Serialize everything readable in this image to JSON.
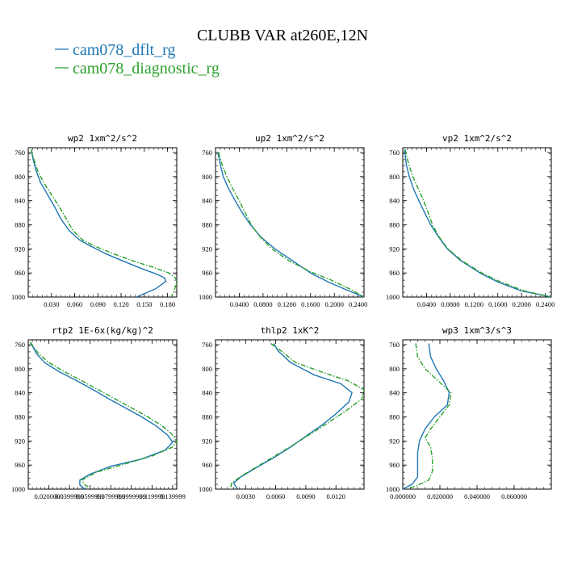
{
  "figure": {
    "title": "CLUBB VAR at260E,12N",
    "legend": [
      {
        "name": "cam078_dflt_rg",
        "color": "#1f77b4",
        "dash": "solid"
      },
      {
        "name": "cam078_diagnostic_rg",
        "color": "#2ca02c",
        "dash": "dashdot"
      }
    ]
  },
  "chart_data": [
    {
      "type": "line",
      "title": "wp2  1xm^2/s^2",
      "xlim": [
        0.0,
        0.192
      ],
      "ylim": [
        1000,
        752
      ],
      "yticks": [
        760,
        800,
        840,
        880,
        920,
        960,
        1000
      ],
      "xticks": [
        0.03,
        0.06,
        0.09,
        0.12,
        0.15,
        0.18
      ],
      "xticklabels": [
        "0.030",
        "0.060",
        "0.090",
        "0.120",
        "0.150",
        "0.180"
      ],
      "series": [
        {
          "name": "cam078_dflt_rg",
          "points": [
            [
              0.004,
              755
            ],
            [
              0.006,
              770
            ],
            [
              0.01,
              790
            ],
            [
              0.016,
              810
            ],
            [
              0.025,
              830
            ],
            [
              0.034,
              850
            ],
            [
              0.042,
              870
            ],
            [
              0.053,
              890
            ],
            [
              0.066,
              905
            ],
            [
              0.08,
              915
            ],
            [
              0.1,
              928
            ],
            [
              0.122,
              940
            ],
            [
              0.145,
              952
            ],
            [
              0.166,
              962
            ],
            [
              0.176,
              968
            ],
            [
              0.178,
              974
            ],
            [
              0.165,
              986
            ],
            [
              0.14,
              1000
            ]
          ]
        },
        {
          "name": "cam078_diagnostic_rg",
          "points": [
            [
              0.004,
              755
            ],
            [
              0.007,
              770
            ],
            [
              0.012,
              790
            ],
            [
              0.02,
              810
            ],
            [
              0.03,
              830
            ],
            [
              0.04,
              850
            ],
            [
              0.049,
              870
            ],
            [
              0.058,
              890
            ],
            [
              0.07,
              905
            ],
            [
              0.085,
              915
            ],
            [
              0.11,
              928
            ],
            [
              0.135,
              940
            ],
            [
              0.16,
              950
            ],
            [
              0.182,
              960
            ],
            [
              0.19,
              968
            ],
            [
              0.192,
              973
            ],
            [
              0.19,
              984
            ],
            [
              0.185,
              1000
            ]
          ]
        }
      ]
    },
    {
      "type": "line",
      "title": "up2  1xm^2/s^2",
      "xlim": [
        0.0,
        0.25
      ],
      "ylim": [
        1000,
        752
      ],
      "yticks": [
        760,
        800,
        840,
        880,
        920,
        960,
        1000
      ],
      "xticks": [
        0.04,
        0.08,
        0.12,
        0.16,
        0.2,
        0.24
      ],
      "xticklabels": [
        "0.0400",
        "0.0800",
        "0.1200",
        "0.1600",
        "0.2000",
        "0.2400"
      ],
      "series": [
        {
          "name": "cam078_dflt_rg",
          "points": [
            [
              0.004,
              760
            ],
            [
              0.008,
              780
            ],
            [
              0.013,
              800
            ],
            [
              0.022,
              820
            ],
            [
              0.033,
              840
            ],
            [
              0.045,
              860
            ],
            [
              0.059,
              880
            ],
            [
              0.076,
              900
            ],
            [
              0.1,
              920
            ],
            [
              0.13,
              940
            ],
            [
              0.16,
              960
            ],
            [
              0.19,
              975
            ],
            [
              0.22,
              988
            ],
            [
              0.25,
              1000
            ]
          ]
        },
        {
          "name": "cam078_diagnostic_rg",
          "points": [
            [
              0.005,
              760
            ],
            [
              0.011,
              780
            ],
            [
              0.019,
              800
            ],
            [
              0.029,
              820
            ],
            [
              0.04,
              840
            ],
            [
              0.05,
              860
            ],
            [
              0.06,
              880
            ],
            [
              0.075,
              900
            ],
            [
              0.095,
              920
            ],
            [
              0.124,
              940
            ],
            [
              0.16,
              958
            ],
            [
              0.195,
              972
            ],
            [
              0.225,
              986
            ],
            [
              0.25,
              1000
            ]
          ]
        }
      ]
    },
    {
      "type": "line",
      "title": "vp2  1xm^2/s^2",
      "xlim": [
        0.0,
        0.25
      ],
      "ylim": [
        1000,
        752
      ],
      "yticks": [
        760,
        800,
        840,
        880,
        920,
        960,
        1000
      ],
      "xticks": [
        0.04,
        0.08,
        0.12,
        0.16,
        0.2,
        0.24
      ],
      "xticklabels": [
        "0.0400",
        "0.0800",
        "0.1200",
        "0.1600",
        "0.2000",
        "0.2400"
      ],
      "series": [
        {
          "name": "cam078_dflt_rg",
          "points": [
            [
              0.003,
              755
            ],
            [
              0.006,
              780
            ],
            [
              0.011,
              800
            ],
            [
              0.018,
              820
            ],
            [
              0.027,
              840
            ],
            [
              0.037,
              860
            ],
            [
              0.047,
              880
            ],
            [
              0.06,
              900
            ],
            [
              0.075,
              920
            ],
            [
              0.098,
              940
            ],
            [
              0.13,
              960
            ],
            [
              0.16,
              975
            ],
            [
              0.2,
              990
            ],
            [
              0.25,
              1000
            ]
          ]
        },
        {
          "name": "cam078_diagnostic_rg",
          "points": [
            [
              0.004,
              755
            ],
            [
              0.01,
              780
            ],
            [
              0.017,
              800
            ],
            [
              0.026,
              820
            ],
            [
              0.035,
              840
            ],
            [
              0.043,
              860
            ],
            [
              0.05,
              880
            ],
            [
              0.061,
              900
            ],
            [
              0.076,
              920
            ],
            [
              0.1,
              940
            ],
            [
              0.133,
              960
            ],
            [
              0.165,
              975
            ],
            [
              0.205,
              990
            ],
            [
              0.25,
              1000
            ]
          ]
        }
      ]
    },
    {
      "type": "line",
      "title": "rtp2  1E-6x(kg/kg)^2",
      "xlim": [
        0.0,
        0.144
      ],
      "ylim": [
        1000,
        752
      ],
      "yticks": [
        760,
        800,
        840,
        880,
        920,
        960,
        1000
      ],
      "xticks": [
        0.02,
        0.04,
        0.06,
        0.08,
        0.1,
        0.12,
        0.14
      ],
      "xticklabels": [
        "0.0200000",
        "0.0399999",
        "0.0599999",
        "0.0799999",
        "0.0999999",
        "0.119999",
        "0.139999"
      ],
      "series": [
        {
          "name": "cam078_dflt_rg",
          "points": [
            [
              0.002,
              756
            ],
            [
              0.008,
              775
            ],
            [
              0.016,
              790
            ],
            [
              0.03,
              805
            ],
            [
              0.047,
              820
            ],
            [
              0.063,
              835
            ],
            [
              0.078,
              850
            ],
            [
              0.094,
              865
            ],
            [
              0.11,
              880
            ],
            [
              0.124,
              895
            ],
            [
              0.135,
              910
            ],
            [
              0.14,
              922
            ],
            [
              0.133,
              935
            ],
            [
              0.11,
              950
            ],
            [
              0.08,
              962
            ],
            [
              0.06,
              975
            ],
            [
              0.05,
              985
            ],
            [
              0.05,
              993
            ],
            [
              0.055,
              1000
            ]
          ]
        },
        {
          "name": "cam078_diagnostic_rg",
          "points": [
            [
              0.002,
              756
            ],
            [
              0.01,
              775
            ],
            [
              0.02,
              790
            ],
            [
              0.035,
              805
            ],
            [
              0.052,
              820
            ],
            [
              0.068,
              835
            ],
            [
              0.084,
              850
            ],
            [
              0.1,
              865
            ],
            [
              0.116,
              880
            ],
            [
              0.13,
              895
            ],
            [
              0.139,
              908
            ],
            [
              0.144,
              920
            ],
            [
              0.14,
              930
            ],
            [
              0.12,
              945
            ],
            [
              0.09,
              960
            ],
            [
              0.066,
              972
            ],
            [
              0.052,
              985
            ],
            [
              0.055,
              993
            ],
            [
              0.062,
              1000
            ]
          ]
        }
      ]
    },
    {
      "type": "line",
      "title": "thlp2  1xK^2",
      "xlim": [
        0.0,
        0.0148
      ],
      "ylim": [
        1000,
        752
      ],
      "yticks": [
        760,
        800,
        840,
        880,
        920,
        960,
        1000
      ],
      "xticks": [
        0.003,
        0.006,
        0.009,
        0.012
      ],
      "xticklabels": [
        "0.0030",
        "0.0060",
        "0.0090",
        "0.0120"
      ],
      "series": [
        {
          "name": "cam078_dflt_rg",
          "points": [
            [
              0.0058,
              758
            ],
            [
              0.0062,
              770
            ],
            [
              0.0075,
              790
            ],
            [
              0.0098,
              810
            ],
            [
              0.0125,
              825
            ],
            [
              0.0136,
              840
            ],
            [
              0.0133,
              855
            ],
            [
              0.012,
              875
            ],
            [
              0.0105,
              895
            ],
            [
              0.009,
              912
            ],
            [
              0.0075,
              930
            ],
            [
              0.0058,
              948
            ],
            [
              0.004,
              965
            ],
            [
              0.0025,
              980
            ],
            [
              0.0018,
              990
            ],
            [
              0.0022,
              1000
            ]
          ]
        },
        {
          "name": "cam078_diagnostic_rg",
          "points": [
            [
              0.0055,
              758
            ],
            [
              0.0065,
              770
            ],
            [
              0.008,
              790
            ],
            [
              0.0105,
              805
            ],
            [
              0.0132,
              820
            ],
            [
              0.0148,
              835
            ],
            [
              0.0146,
              850
            ],
            [
              0.013,
              870
            ],
            [
              0.0112,
              890
            ],
            [
              0.0095,
              908
            ],
            [
              0.0078,
              926
            ],
            [
              0.006,
              944
            ],
            [
              0.0042,
              962
            ],
            [
              0.0026,
              978
            ],
            [
              0.0016,
              990
            ],
            [
              0.0015,
              1000
            ]
          ]
        }
      ]
    },
    {
      "type": "line",
      "title": "wp3  1xm^3/s^3",
      "xlim": [
        0.0,
        0.08
      ],
      "ylim": [
        1000,
        752
      ],
      "yticks": [
        760,
        800,
        840,
        880,
        920,
        960,
        1000
      ],
      "xticks": [
        0.0,
        0.02,
        0.04,
        0.06
      ],
      "xticklabels": [
        "0.000000",
        "0.020000",
        "0.040000",
        "0.060000"
      ],
      "series": [
        {
          "name": "cam078_dflt_rg",
          "points": [
            [
              0.014,
              758
            ],
            [
              0.015,
              780
            ],
            [
              0.018,
              800
            ],
            [
              0.022,
              820
            ],
            [
              0.025,
              840
            ],
            [
              0.024,
              860
            ],
            [
              0.017,
              880
            ],
            [
              0.012,
              900
            ],
            [
              0.009,
              920
            ],
            [
              0.008,
              940
            ],
            [
              0.008,
              960
            ],
            [
              0.008,
              980
            ],
            [
              0.005,
              992
            ],
            [
              0.0,
              1000
            ]
          ]
        },
        {
          "name": "cam078_diagnostic_rg",
          "points": [
            [
              0.007,
              758
            ],
            [
              0.008,
              780
            ],
            [
              0.012,
              800
            ],
            [
              0.019,
              820
            ],
            [
              0.026,
              840
            ],
            [
              0.025,
              860
            ],
            [
              0.02,
              880
            ],
            [
              0.015,
              900
            ],
            [
              0.012,
              915
            ],
            [
              0.015,
              930
            ],
            [
              0.016,
              950
            ],
            [
              0.016,
              970
            ],
            [
              0.014,
              985
            ],
            [
              0.007,
              995
            ],
            [
              0.002,
              1000
            ]
          ]
        }
      ]
    }
  ]
}
